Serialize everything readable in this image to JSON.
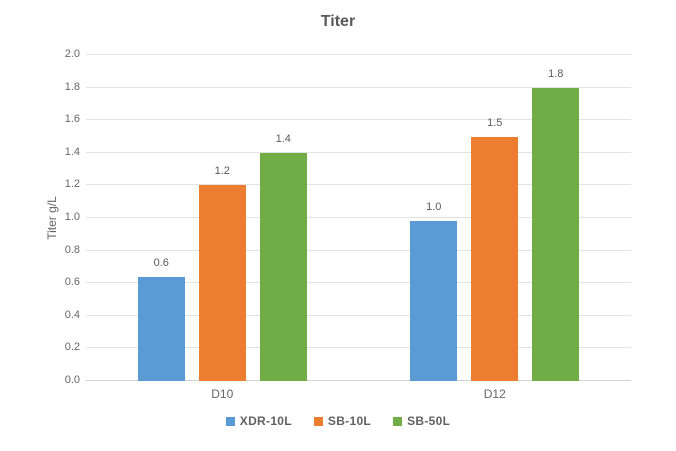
{
  "chart_data": {
    "type": "bar",
    "title": "Titer",
    "xlabel": "",
    "ylabel": "Titer g/L",
    "categories": [
      "D10",
      "D12"
    ],
    "series": [
      {
        "name": "XDR-10L",
        "color": "#5B9BD5",
        "values": [
          0.64,
          0.98
        ],
        "data_labels": [
          "0.6",
          "1.0"
        ]
      },
      {
        "name": "SB-10L",
        "color": "#ED7D31",
        "values": [
          1.2,
          1.5
        ],
        "data_labels": [
          "1.2",
          "1.5"
        ]
      },
      {
        "name": "SB-50L",
        "color": "#70AD47",
        "values": [
          1.4,
          1.8
        ],
        "data_labels": [
          "1.4",
          "1.8"
        ]
      }
    ],
    "ylim": [
      0,
      2.0
    ],
    "ytick_labels": [
      "0.0",
      "0.2",
      "0.4",
      "0.6",
      "0.8",
      "1.0",
      "1.2",
      "1.4",
      "1.6",
      "1.8",
      "2.0"
    ],
    "grid": true,
    "legend_position": "bottom"
  },
  "colors": {
    "background": "#ffffff",
    "gridline": "#e3e3e3",
    "axis_line": "#d2d2d2",
    "title_text": "#595959",
    "muted_text": "#666666",
    "legend_text": "#616161"
  }
}
